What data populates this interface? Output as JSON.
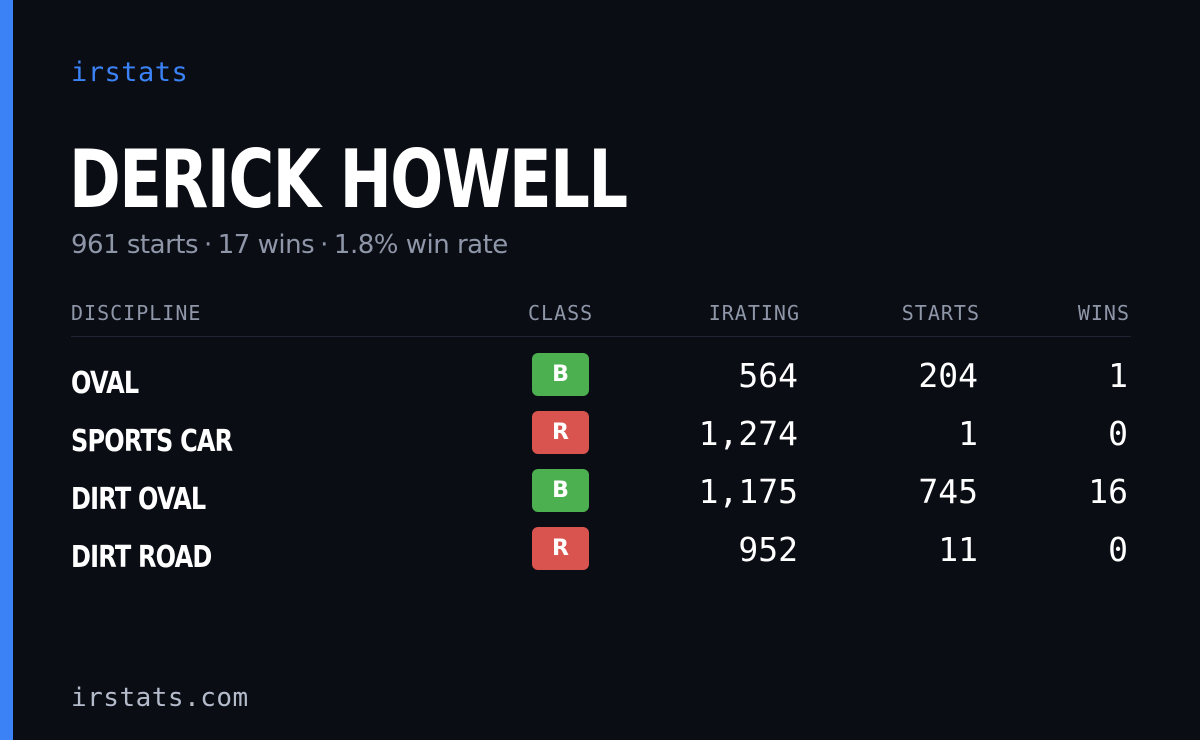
{
  "brand": "irstats",
  "player": {
    "name": "DERICK HOWELL",
    "starts_text": "961 starts",
    "wins_text": "17 wins",
    "winrate_text": "1.8% win rate",
    "separator": "·"
  },
  "table": {
    "headers": {
      "discipline": "DISCIPLINE",
      "class": "CLASS",
      "irating": "IRATING",
      "starts": "STARTS",
      "wins": "WINS"
    },
    "rows": [
      {
        "discipline": "OVAL",
        "class": "B",
        "class_color": "#4caf50",
        "irating": "564",
        "starts": "204",
        "wins": "1"
      },
      {
        "discipline": "SPORTS CAR",
        "class": "R",
        "class_color": "#d9534f",
        "irating": "1,274",
        "starts": "1",
        "wins": "0"
      },
      {
        "discipline": "DIRT OVAL",
        "class": "B",
        "class_color": "#4caf50",
        "irating": "1,175",
        "starts": "745",
        "wins": "16"
      },
      {
        "discipline": "DIRT ROAD",
        "class": "R",
        "class_color": "#d9534f",
        "irating": "952",
        "starts": "11",
        "wins": "0"
      }
    ]
  },
  "footer": "irstats.com",
  "colors": {
    "background": "#0a0d14",
    "accent": "#3b82f6",
    "muted_text": "#8e96a8",
    "class_b": "#4caf50",
    "class_r": "#d9534f"
  }
}
